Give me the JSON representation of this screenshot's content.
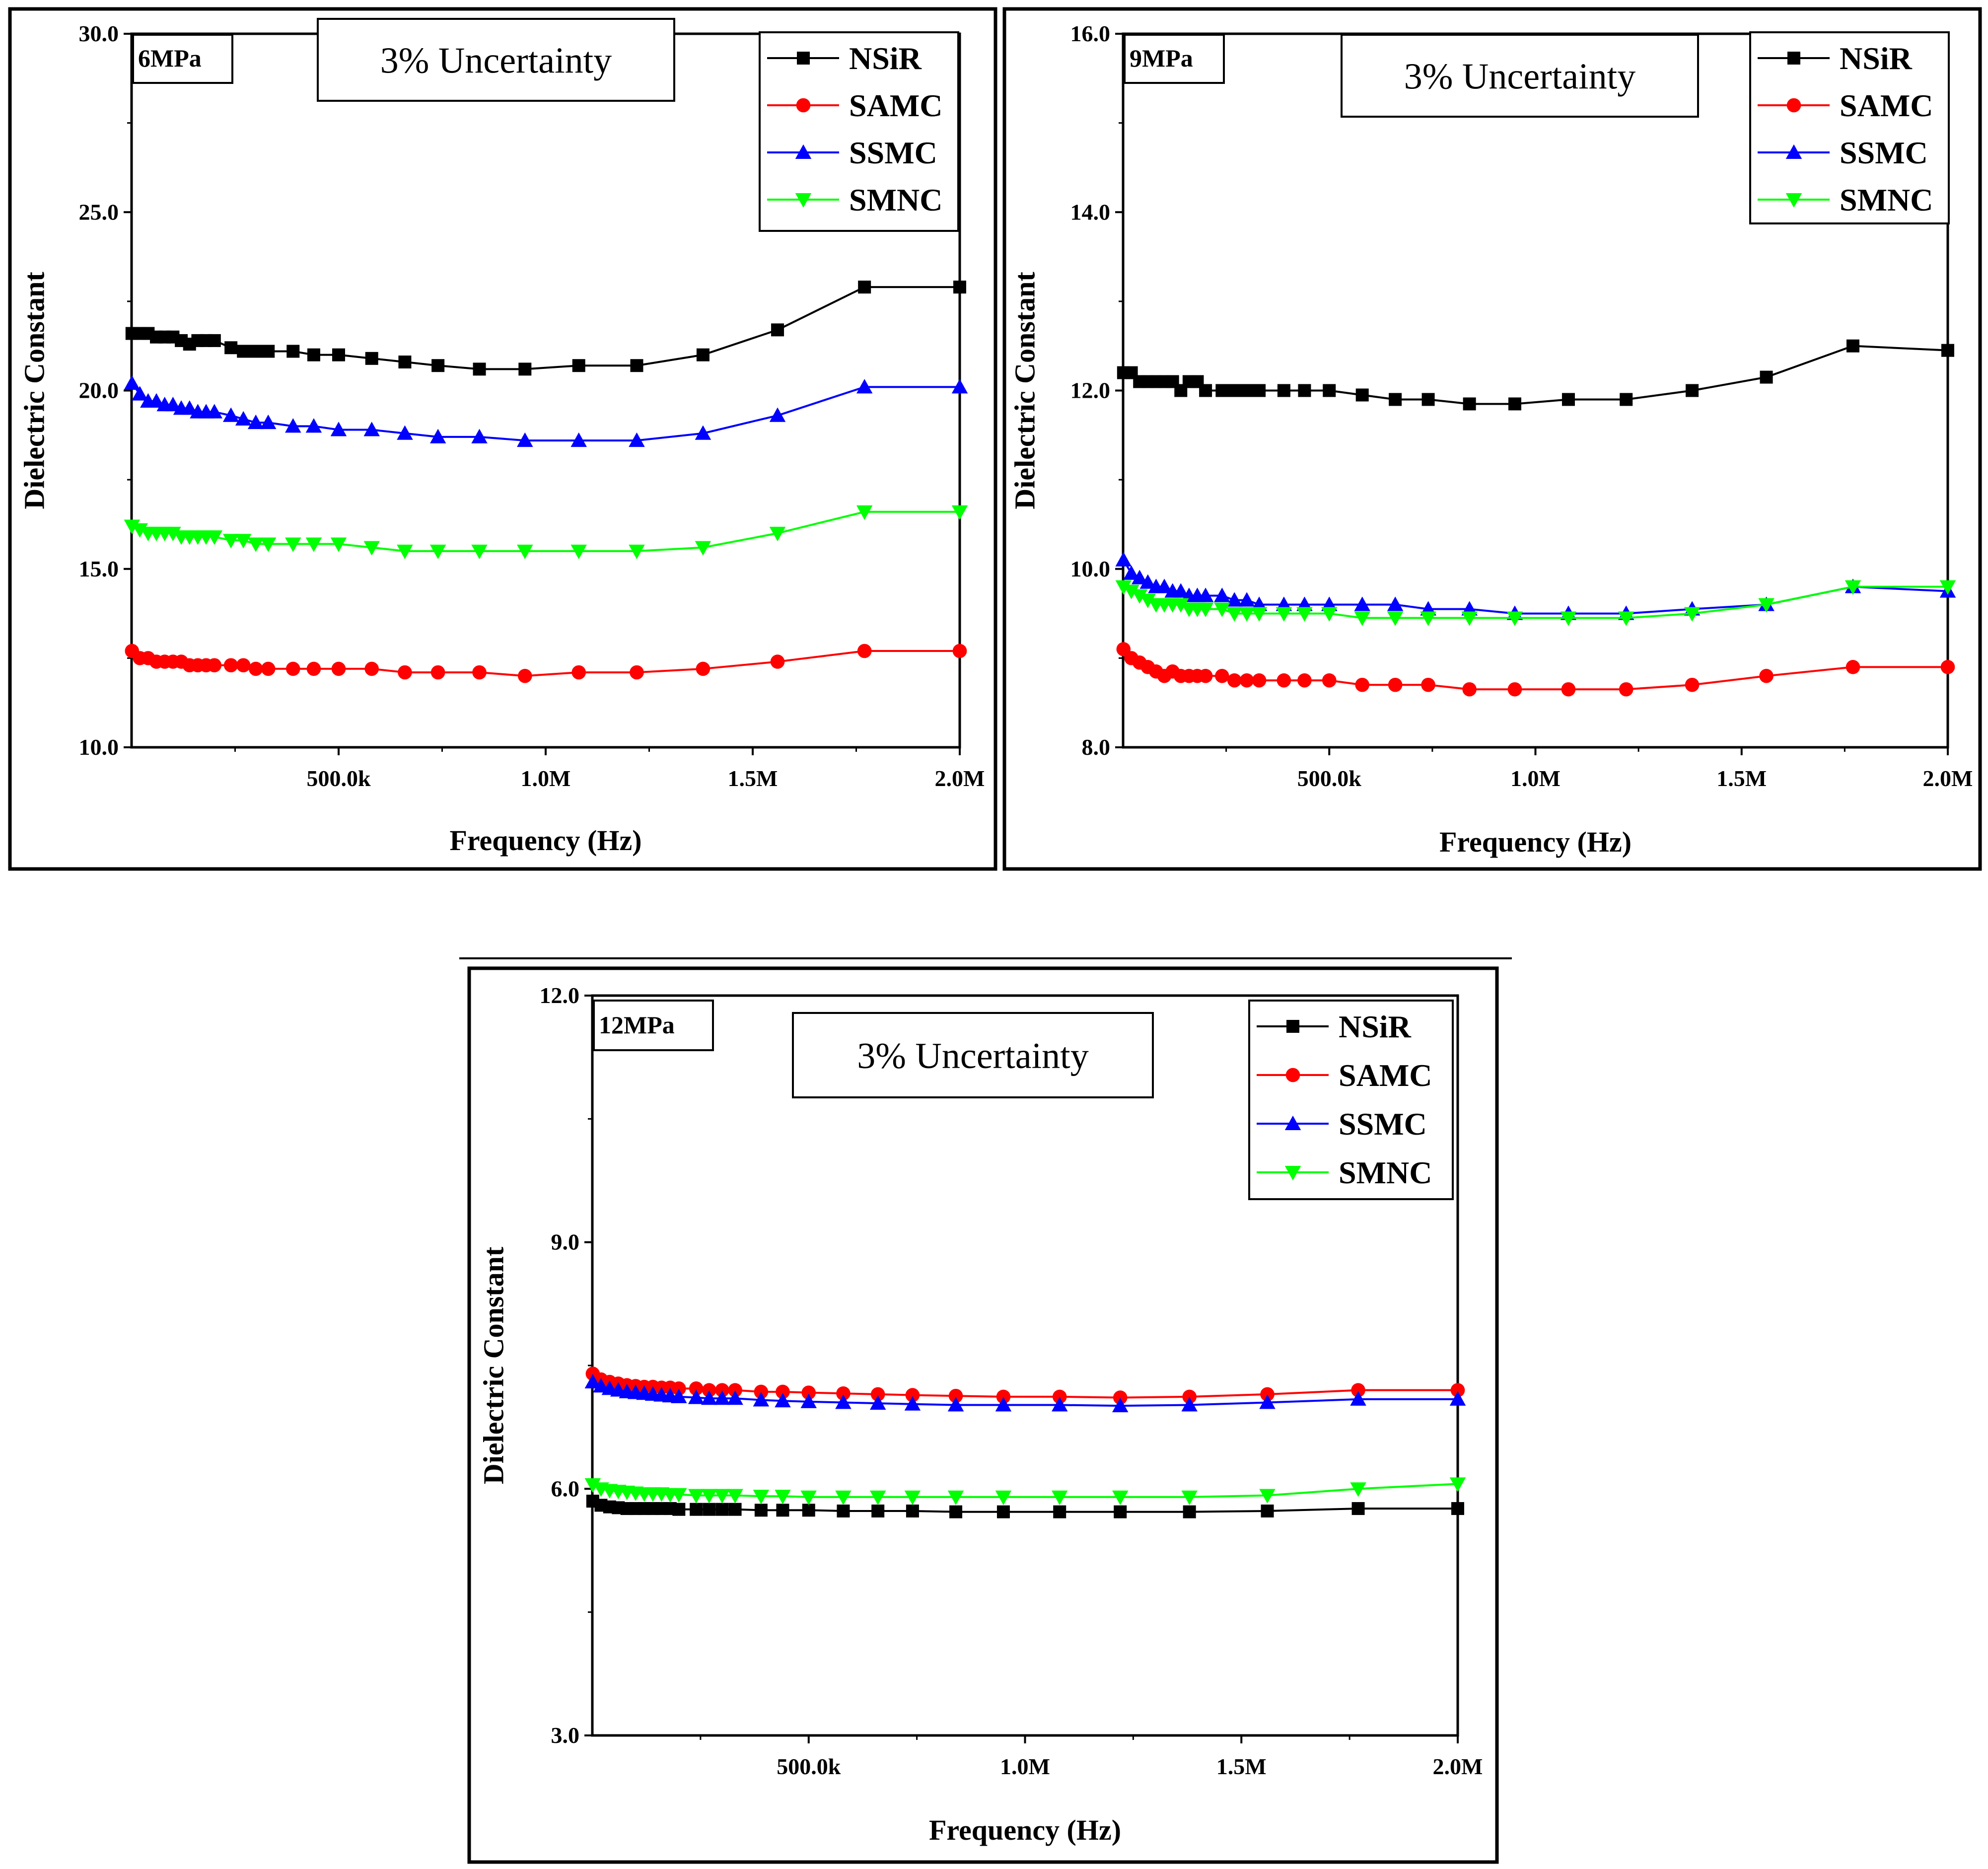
{
  "colors": {
    "NSiR": "#000000",
    "SAMC": "#ff0000",
    "SSMC": "#0000ff",
    "SMNC": "#00ff00"
  },
  "chart_data": [
    {
      "type": "line",
      "panel_label": "6MPa",
      "annotation": "3% Uncertainty",
      "xlabel": "Frequency (Hz)",
      "ylabel": "Dielectric Constant",
      "xlim": [
        0,
        2000000
      ],
      "ylim": [
        10.0,
        30.0
      ],
      "yticks": [
        10.0,
        15.0,
        20.0,
        25.0,
        30.0
      ],
      "ytick_labels": [
        "10.0",
        "15.0",
        "20.0",
        "25.0",
        "30.0"
      ],
      "xticks": [
        500000,
        1000000,
        1500000,
        2000000
      ],
      "xtick_labels": [
        "500.0k",
        "1.0M",
        "1.5M",
        "2.0M"
      ],
      "legend": [
        "NSiR",
        "SAMC",
        "SSMC",
        "SMNC"
      ],
      "x": [
        1000,
        20000,
        40000,
        60000,
        80000,
        100000,
        120000,
        140000,
        160000,
        180000,
        200000,
        240000,
        270000,
        300000,
        330000,
        390000,
        440000,
        500000,
        580000,
        660000,
        740000,
        840000,
        950000,
        1080000,
        1220000,
        1380000,
        1560000,
        1770000,
        2000000
      ],
      "series": [
        {
          "name": "NSiR",
          "values": [
            21.6,
            21.6,
            21.6,
            21.5,
            21.5,
            21.5,
            21.4,
            21.3,
            21.4,
            21.4,
            21.4,
            21.2,
            21.1,
            21.1,
            21.1,
            21.1,
            21.0,
            21.0,
            20.9,
            20.8,
            20.7,
            20.6,
            20.6,
            20.7,
            20.7,
            21.0,
            21.7,
            22.9,
            22.9
          ]
        },
        {
          "name": "SAMC",
          "values": [
            12.7,
            12.5,
            12.5,
            12.4,
            12.4,
            12.4,
            12.4,
            12.3,
            12.3,
            12.3,
            12.3,
            12.3,
            12.3,
            12.2,
            12.2,
            12.2,
            12.2,
            12.2,
            12.2,
            12.1,
            12.1,
            12.1,
            12.0,
            12.1,
            12.1,
            12.2,
            12.4,
            12.7,
            12.7
          ]
        },
        {
          "name": "SSMC",
          "values": [
            20.2,
            19.9,
            19.7,
            19.7,
            19.6,
            19.6,
            19.5,
            19.5,
            19.4,
            19.4,
            19.4,
            19.3,
            19.2,
            19.1,
            19.1,
            19.0,
            19.0,
            18.9,
            18.9,
            18.8,
            18.7,
            18.7,
            18.6,
            18.6,
            18.6,
            18.8,
            19.3,
            20.1,
            20.1
          ]
        },
        {
          "name": "SMNC",
          "values": [
            16.2,
            16.1,
            16.0,
            16.0,
            16.0,
            16.0,
            15.9,
            15.9,
            15.9,
            15.9,
            15.9,
            15.8,
            15.8,
            15.7,
            15.7,
            15.7,
            15.7,
            15.7,
            15.6,
            15.5,
            15.5,
            15.5,
            15.5,
            15.5,
            15.5,
            15.6,
            16.0,
            16.6,
            16.6
          ]
        }
      ]
    },
    {
      "type": "line",
      "panel_label": "9MPa",
      "annotation": "3% Uncertainty",
      "xlabel": "Frequency (Hz)",
      "ylabel": "Dielectric Constant",
      "xlim": [
        0,
        2000000
      ],
      "ylim": [
        8.0,
        16.0
      ],
      "yticks": [
        8.0,
        10.0,
        12.0,
        14.0,
        16.0
      ],
      "ytick_labels": [
        "8.0",
        "10.0",
        "12.0",
        "14.0",
        "16.0"
      ],
      "xticks": [
        500000,
        1000000,
        1500000,
        2000000
      ],
      "xtick_labels": [
        "500.0k",
        "1.0M",
        "1.5M",
        "2.0M"
      ],
      "legend": [
        "NSiR",
        "SAMC",
        "SSMC",
        "SMNC"
      ],
      "x": [
        1000,
        20000,
        40000,
        60000,
        80000,
        100000,
        120000,
        140000,
        160000,
        180000,
        200000,
        240000,
        270000,
        300000,
        330000,
        390000,
        440000,
        500000,
        580000,
        660000,
        740000,
        840000,
        950000,
        1080000,
        1220000,
        1380000,
        1560000,
        1770000,
        2000000
      ],
      "series": [
        {
          "name": "NSiR",
          "values": [
            12.2,
            12.2,
            12.1,
            12.1,
            12.1,
            12.1,
            12.1,
            12.0,
            12.1,
            12.1,
            12.0,
            12.0,
            12.0,
            12.0,
            12.0,
            12.0,
            12.0,
            12.0,
            11.95,
            11.9,
            11.9,
            11.85,
            11.85,
            11.9,
            11.9,
            12.0,
            12.15,
            12.5,
            12.45
          ]
        },
        {
          "name": "SAMC",
          "values": [
            9.1,
            9.0,
            8.95,
            8.9,
            8.85,
            8.8,
            8.85,
            8.8,
            8.8,
            8.8,
            8.8,
            8.8,
            8.75,
            8.75,
            8.75,
            8.75,
            8.75,
            8.75,
            8.7,
            8.7,
            8.7,
            8.65,
            8.65,
            8.65,
            8.65,
            8.7,
            8.8,
            8.9,
            8.9
          ]
        },
        {
          "name": "SSMC",
          "values": [
            10.1,
            9.95,
            9.9,
            9.85,
            9.8,
            9.8,
            9.75,
            9.75,
            9.7,
            9.7,
            9.7,
            9.7,
            9.65,
            9.65,
            9.6,
            9.6,
            9.6,
            9.6,
            9.6,
            9.6,
            9.55,
            9.55,
            9.5,
            9.5,
            9.5,
            9.55,
            9.6,
            9.8,
            9.75
          ]
        },
        {
          "name": "SMNC",
          "values": [
            9.8,
            9.75,
            9.7,
            9.65,
            9.6,
            9.6,
            9.6,
            9.6,
            9.55,
            9.55,
            9.55,
            9.55,
            9.5,
            9.5,
            9.5,
            9.5,
            9.5,
            9.5,
            9.45,
            9.45,
            9.45,
            9.45,
            9.45,
            9.45,
            9.45,
            9.5,
            9.6,
            9.8,
            9.8
          ]
        }
      ]
    },
    {
      "type": "line",
      "panel_label": "12MPa",
      "annotation": "3% Uncertainty",
      "xlabel": "Frequency (Hz)",
      "ylabel": "Dielectric Constant",
      "xlim": [
        0,
        2000000
      ],
      "ylim": [
        3.0,
        12.0
      ],
      "yticks": [
        3.0,
        6.0,
        9.0,
        12.0
      ],
      "ytick_labels": [
        "3.0",
        "6.0",
        "9.0",
        "12.0"
      ],
      "xticks": [
        500000,
        1000000,
        1500000,
        2000000
      ],
      "xtick_labels": [
        "500.0k",
        "1.0M",
        "1.5M",
        "2.0M"
      ],
      "legend": [
        "NSiR",
        "SAMC",
        "SSMC",
        "SMNC"
      ],
      "x": [
        1000,
        20000,
        40000,
        60000,
        80000,
        100000,
        120000,
        140000,
        160000,
        180000,
        200000,
        240000,
        270000,
        300000,
        330000,
        390000,
        440000,
        500000,
        580000,
        660000,
        740000,
        840000,
        950000,
        1080000,
        1220000,
        1380000,
        1560000,
        1770000,
        2000000
      ],
      "series": [
        {
          "name": "NSiR",
          "values": [
            5.85,
            5.8,
            5.78,
            5.77,
            5.76,
            5.76,
            5.76,
            5.76,
            5.76,
            5.76,
            5.75,
            5.75,
            5.75,
            5.75,
            5.75,
            5.74,
            5.74,
            5.74,
            5.73,
            5.73,
            5.73,
            5.72,
            5.72,
            5.72,
            5.72,
            5.72,
            5.73,
            5.76,
            5.76
          ]
        },
        {
          "name": "SAMC",
          "values": [
            7.4,
            7.33,
            7.3,
            7.28,
            7.26,
            7.25,
            7.24,
            7.24,
            7.23,
            7.23,
            7.22,
            7.22,
            7.2,
            7.2,
            7.2,
            7.18,
            7.18,
            7.17,
            7.16,
            7.15,
            7.14,
            7.13,
            7.12,
            7.12,
            7.11,
            7.12,
            7.15,
            7.2,
            7.2
          ]
        },
        {
          "name": "SSMC",
          "values": [
            7.3,
            7.25,
            7.22,
            7.2,
            7.18,
            7.17,
            7.16,
            7.15,
            7.14,
            7.13,
            7.12,
            7.11,
            7.1,
            7.1,
            7.1,
            7.08,
            7.07,
            7.06,
            7.05,
            7.04,
            7.03,
            7.02,
            7.02,
            7.02,
            7.01,
            7.02,
            7.05,
            7.09,
            7.09
          ]
        },
        {
          "name": "SMNC",
          "values": [
            6.05,
            6.0,
            5.98,
            5.97,
            5.96,
            5.95,
            5.94,
            5.94,
            5.94,
            5.93,
            5.93,
            5.92,
            5.92,
            5.92,
            5.92,
            5.91,
            5.91,
            5.9,
            5.9,
            5.9,
            5.9,
            5.9,
            5.9,
            5.9,
            5.9,
            5.9,
            5.92,
            6.0,
            6.06
          ]
        }
      ]
    }
  ]
}
